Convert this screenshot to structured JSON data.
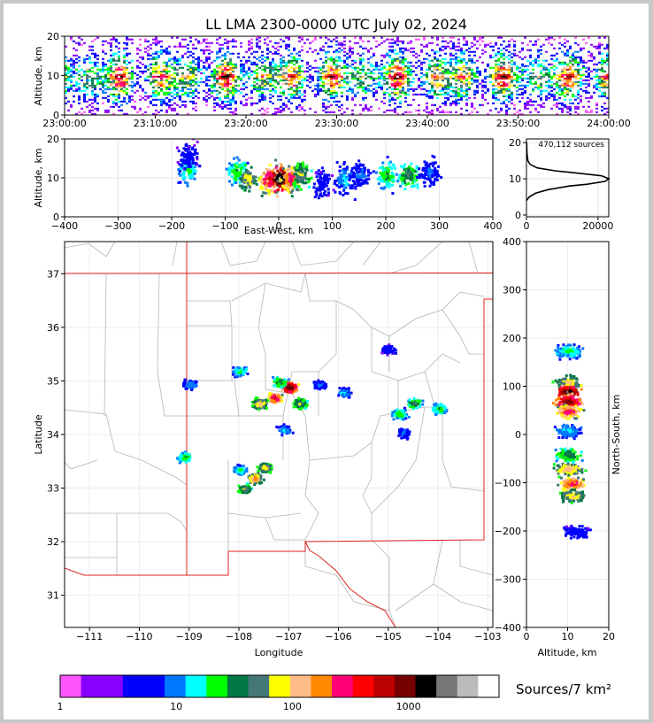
{
  "title": "LL LMA 2300-0000 UTC July 02, 2024",
  "time_panel": {
    "ylabel": "Altitude, km",
    "x_ticks": [
      "23:00:00",
      "23:10:00",
      "23:20:00",
      "23:30:00",
      "23:40:00",
      "23:50:00",
      "24:00:00"
    ],
    "y_ticks": [
      "0",
      "10",
      "20"
    ]
  },
  "ew_panel": {
    "xlabel": "East-West, km",
    "ylabel": "Altitude, km",
    "x_ticks": [
      "-400",
      "-300",
      "-200",
      "-100",
      "0",
      "100",
      "200",
      "300",
      "400"
    ],
    "y_ticks": [
      "0",
      "10",
      "20"
    ]
  },
  "hist_panel": {
    "annotation": "470,112 sources",
    "x_ticks": [
      "0",
      "20000"
    ],
    "y_ticks": [
      "0",
      "10",
      "20"
    ]
  },
  "map_panel": {
    "xlabel": "Longitude",
    "ylabel": "Latitude",
    "x_ticks": [
      "-111",
      "-110",
      "-109",
      "-108",
      "-107",
      "-106",
      "-105",
      "-104",
      "-103"
    ],
    "y_ticks": [
      "31",
      "32",
      "33",
      "34",
      "35",
      "36",
      "37"
    ]
  },
  "ns_panel": {
    "xlabel": "Altitude, km",
    "ylabel": "North-South, km",
    "x_ticks": [
      "0",
      "10",
      "20"
    ],
    "y_ticks": [
      "-400",
      "-300",
      "-200",
      "-100",
      "0",
      "100",
      "200",
      "300",
      "400"
    ]
  },
  "colorbar": {
    "label": "Sources/7 km²",
    "tick_labels": [
      "1",
      "10",
      "100",
      "1000"
    ],
    "colors": [
      "#ff55ff",
      "#8800ff",
      "#8800ff",
      "#0000ff",
      "#0000ff",
      "#0077ff",
      "#00ffff",
      "#00ff00",
      "#007744",
      "#447777",
      "#ffff00",
      "#ffbb88",
      "#ff8800",
      "#ff0077",
      "#ff0000",
      "#bb0000",
      "#770000",
      "#000000",
      "#777777",
      "#bbbbbb",
      "#ffffff"
    ]
  },
  "chart_data": [
    {
      "type": "heatmap",
      "title": "LL LMA 2300-0000 UTC July 02, 2024",
      "xlabel": "",
      "ylabel": "Altitude, km",
      "x_range": [
        "23:00:00",
        "24:00:00"
      ],
      "ylim": [
        0,
        20
      ],
      "rows_by_altitude": [
        {
          "alt": 2,
          "density": 0.15
        },
        {
          "alt": 4,
          "density": 0.35
        },
        {
          "alt": 6,
          "density": 0.6
        },
        {
          "alt": 8,
          "density": 0.85
        },
        {
          "alt": 10,
          "density": 1.0
        },
        {
          "alt": 12,
          "density": 0.8
        },
        {
          "alt": 14,
          "density": 0.55
        },
        {
          "alt": 16,
          "density": 0.35
        },
        {
          "alt": 18,
          "density": 0.2
        },
        {
          "alt": 20,
          "density": 0.1
        }
      ]
    },
    {
      "type": "heatmap",
      "xlabel": "East-West, km",
      "ylabel": "Altitude, km",
      "xlim": [
        -400,
        400
      ],
      "ylim": [
        0,
        20
      ],
      "cells": [
        {
          "x": -170,
          "z": 12,
          "level": 7
        },
        {
          "x": -170,
          "z": 16,
          "level": 4
        },
        {
          "x": -80,
          "z": 12,
          "level": 8
        },
        {
          "x": -60,
          "z": 10,
          "level": 11
        },
        {
          "x": -20,
          "z": 10,
          "level": 15
        },
        {
          "x": 0,
          "z": 10,
          "level": 19
        },
        {
          "x": 20,
          "z": 10,
          "level": 14
        },
        {
          "x": 40,
          "z": 11,
          "level": 10
        },
        {
          "x": 80,
          "z": 9,
          "level": 4
        },
        {
          "x": 120,
          "z": 10,
          "level": 6
        },
        {
          "x": 150,
          "z": 11,
          "level": 5
        },
        {
          "x": 200,
          "z": 11,
          "level": 8
        },
        {
          "x": 240,
          "z": 11,
          "level": 9
        },
        {
          "x": 280,
          "z": 12,
          "level": 5
        }
      ]
    },
    {
      "type": "line",
      "xlabel": "",
      "ylabel": "",
      "xlim": [
        0,
        23000
      ],
      "ylim": [
        0,
        20
      ],
      "x": [
        0,
        800,
        2500,
        6000,
        12000,
        17000,
        22000,
        23000,
        21000,
        15000,
        8000,
        3000,
        1000,
        400,
        150,
        50
      ],
      "y": [
        4,
        5,
        6,
        7,
        8,
        8.5,
        9.3,
        10,
        10.8,
        11.5,
        12.2,
        13,
        14,
        15,
        17,
        20
      ]
    },
    {
      "type": "heatmap",
      "xlabel": "Longitude",
      "ylabel": "Latitude",
      "xlim": [
        -111.5,
        -102.9
      ],
      "ylim": [
        30.4,
        37.6
      ],
      "cells": [
        {
          "lon": -107.0,
          "lat": 34.9,
          "level": 18
        },
        {
          "lon": -107.3,
          "lat": 34.7,
          "level": 15
        },
        {
          "lon": -107.6,
          "lat": 34.6,
          "level": 12
        },
        {
          "lon": -106.8,
          "lat": 34.6,
          "level": 10
        },
        {
          "lon": -107.2,
          "lat": 35.0,
          "level": 9
        },
        {
          "lon": -108.0,
          "lat": 35.2,
          "level": 7
        },
        {
          "lon": -109.0,
          "lat": 34.95,
          "level": 6
        },
        {
          "lon": -109.1,
          "lat": 33.6,
          "level": 8
        },
        {
          "lon": -107.5,
          "lat": 33.4,
          "level": 11
        },
        {
          "lon": -107.7,
          "lat": 33.2,
          "level": 13
        },
        {
          "lon": -107.9,
          "lat": 33.0,
          "level": 10
        },
        {
          "lon": -108.0,
          "lat": 33.35,
          "level": 7
        },
        {
          "lon": -106.4,
          "lat": 34.95,
          "level": 5
        },
        {
          "lon": -105.9,
          "lat": 34.8,
          "level": 6
        },
        {
          "lon": -104.8,
          "lat": 34.4,
          "level": 8
        },
        {
          "lon": -104.5,
          "lat": 34.6,
          "level": 9
        },
        {
          "lon": -104.0,
          "lat": 34.5,
          "level": 8
        },
        {
          "lon": -104.7,
          "lat": 34.05,
          "level": 5
        },
        {
          "lon": -105.0,
          "lat": 35.6,
          "level": 4
        },
        {
          "lon": -107.1,
          "lat": 34.1,
          "level": 6
        }
      ]
    },
    {
      "type": "heatmap",
      "xlabel": "Altitude, km",
      "ylabel": "North-South, km",
      "xlim": [
        0,
        20
      ],
      "ylim": [
        -400,
        400
      ],
      "cells": [
        {
          "alt": 10,
          "ns": 175,
          "level": 7
        },
        {
          "alt": 10,
          "ns": 110,
          "level": 11
        },
        {
          "alt": 10,
          "ns": 90,
          "level": 18
        },
        {
          "alt": 10,
          "ns": 70,
          "level": 17
        },
        {
          "alt": 10,
          "ns": 50,
          "level": 14
        },
        {
          "alt": 10,
          "ns": 10,
          "level": 6
        },
        {
          "alt": 10,
          "ns": -40,
          "level": 9
        },
        {
          "alt": 10,
          "ns": -70,
          "level": 12
        },
        {
          "alt": 11,
          "ns": -100,
          "level": 14
        },
        {
          "alt": 11,
          "ns": -125,
          "level": 11
        },
        {
          "alt": 12,
          "ns": -200,
          "level": 4
        }
      ]
    }
  ]
}
